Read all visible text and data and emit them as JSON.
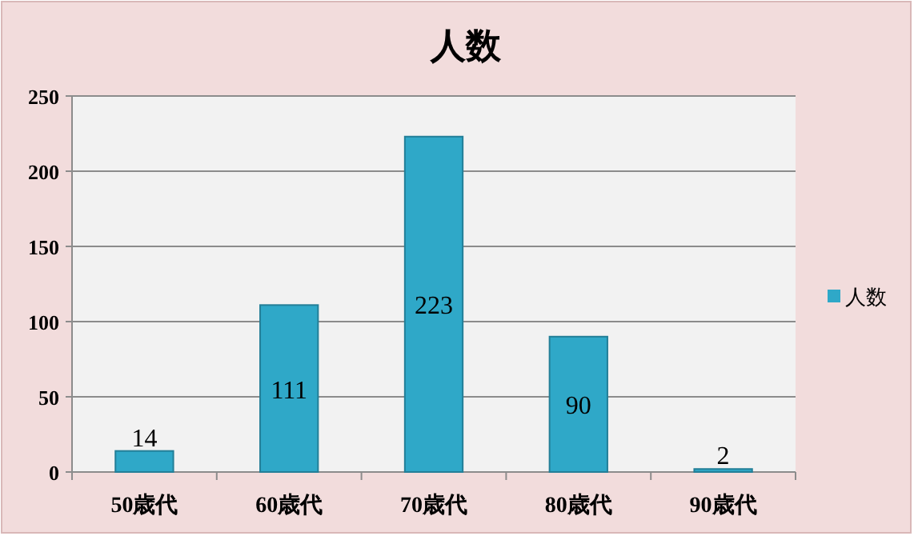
{
  "chart_data": {
    "type": "bar",
    "title": "人数",
    "categories": [
      "50歳代",
      "60歳代",
      "70歳代",
      "80歳代",
      "90歳代"
    ],
    "series": [
      {
        "name": "人数",
        "color": "#2fa8c8",
        "values": [
          14,
          111,
          223,
          90,
          2
        ]
      }
    ],
    "ylim": [
      0,
      250
    ],
    "yticks": [
      0,
      50,
      100,
      150,
      200,
      250
    ],
    "grid": "y",
    "legend": "right",
    "data_labels": true
  }
}
